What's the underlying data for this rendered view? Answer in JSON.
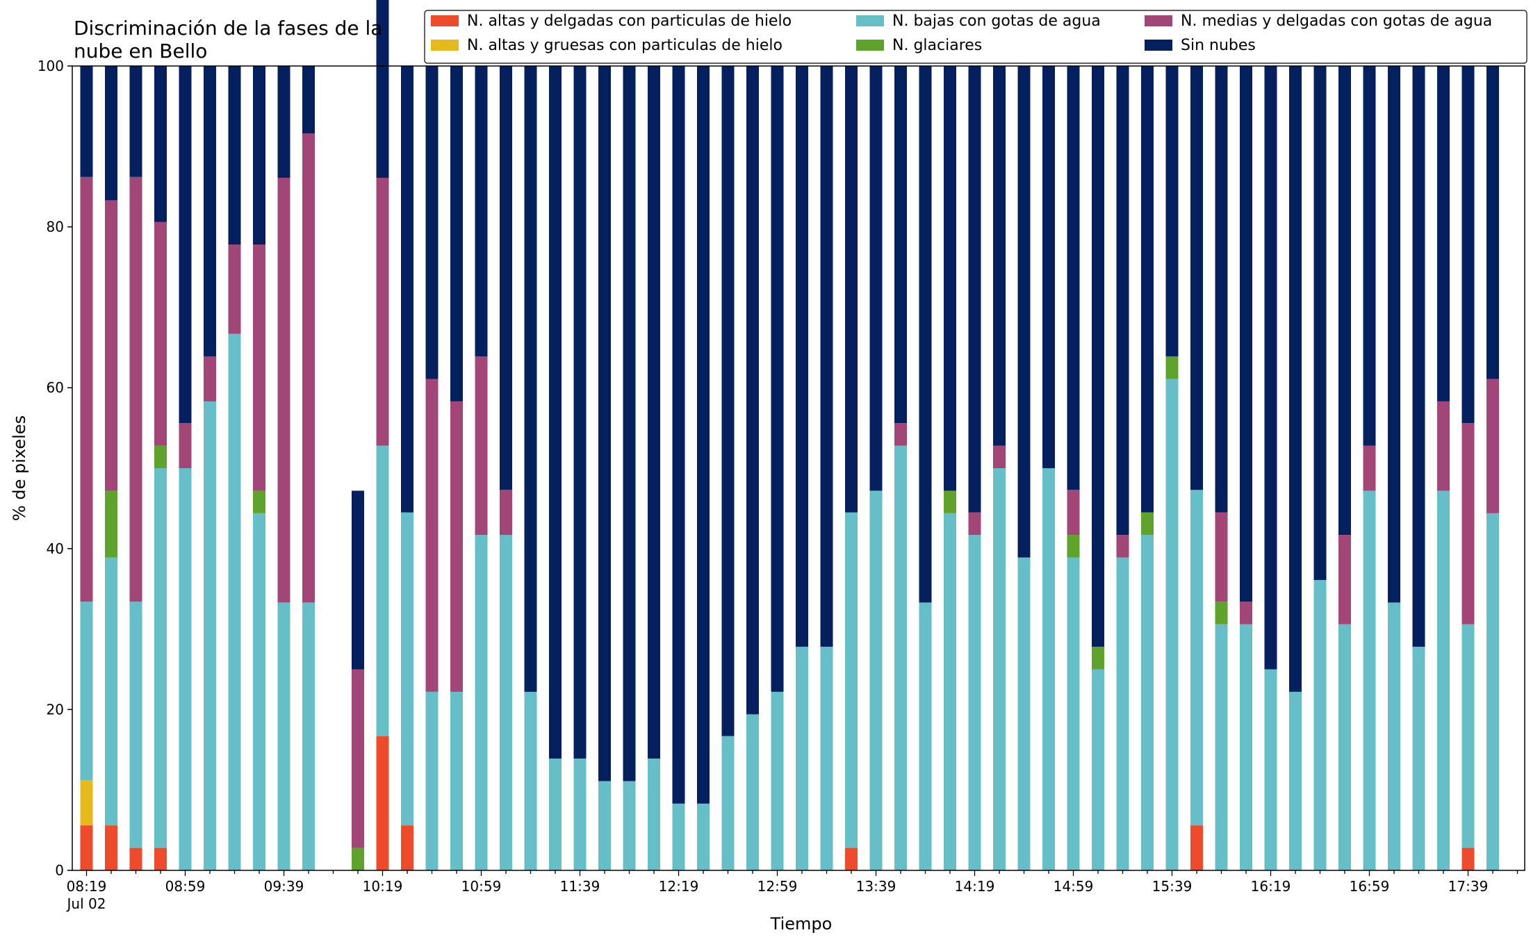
{
  "chart_data": {
    "type": "bar",
    "stacked": true,
    "title": "Discriminación de la fases de la nube en Bello",
    "title_lines": [
      "Discriminación de la fases de la",
      "nube en Bello"
    ],
    "xlabel": "Tiempo",
    "ylabel": "% de pixeles",
    "ylim": [
      0,
      100
    ],
    "yticks": [
      0,
      20,
      40,
      60,
      80,
      100
    ],
    "date_label": "Jul 02",
    "legend_position": "top-right",
    "xtick_labels": [
      "08:19",
      "08:59",
      "09:39",
      "10:19",
      "10:59",
      "11:39",
      "12:19",
      "12:59",
      "13:39",
      "14:19",
      "14:59",
      "15:39",
      "16:19",
      "16:59",
      "17:39"
    ],
    "series": [
      {
        "name": "N. altas y delgadas con particulas de hielo",
        "color": "#ee4a2c",
        "values": [
          5.6,
          5.6,
          2.8,
          2.8,
          0,
          0,
          0,
          0,
          0,
          0,
          null,
          0,
          16.7,
          5.6,
          0,
          0,
          0,
          0,
          0,
          0,
          0,
          0,
          0,
          0,
          0,
          0,
          0,
          0,
          0,
          0,
          0,
          2.8,
          0,
          0,
          0,
          0,
          0,
          0,
          0,
          0,
          0,
          0,
          0,
          0,
          0,
          5.6,
          0,
          0,
          0,
          0,
          0,
          0,
          0,
          0,
          0,
          0,
          2.8,
          0
        ]
      },
      {
        "name": "N. altas y gruesas con particulas de hielo",
        "color": "#e6b91c",
        "values": [
          5.6,
          0,
          0,
          0,
          0,
          0,
          0,
          0,
          0,
          0,
          null,
          0,
          0,
          0,
          0,
          0,
          0,
          0,
          0,
          0,
          0,
          0,
          0,
          0,
          0,
          0,
          0,
          0,
          0,
          0,
          0,
          0,
          0,
          0,
          0,
          0,
          0,
          0,
          0,
          0,
          0,
          0,
          0,
          0,
          0,
          0,
          0,
          0,
          0,
          0,
          0,
          0,
          0,
          0,
          0,
          0,
          0,
          0
        ]
      },
      {
        "name": "N. bajas con gotas de agua",
        "color": "#66bec8",
        "values": [
          22.2,
          33.3,
          30.6,
          47.2,
          50,
          58.3,
          66.7,
          44.4,
          33.3,
          33.3,
          null,
          0,
          36.1,
          38.9,
          22.2,
          22.2,
          41.7,
          41.7,
          22.2,
          13.9,
          13.9,
          11.1,
          11.1,
          13.9,
          8.3,
          8.3,
          16.7,
          19.4,
          22.2,
          27.8,
          27.8,
          41.7,
          47.2,
          52.8,
          33.3,
          44.4,
          41.7,
          50,
          38.9,
          50,
          38.9,
          25,
          38.9,
          41.7,
          61.1,
          41.7,
          30.6,
          30.6,
          25,
          22.2,
          36.1,
          30.6,
          47.2,
          33.3,
          27.8,
          47.2,
          27.8,
          44.4
        ]
      },
      {
        "name": "N. glaciares",
        "color": "#5fa22c",
        "values": [
          0,
          8.3,
          0,
          2.8,
          0,
          0,
          0,
          2.8,
          0,
          0,
          null,
          2.8,
          0,
          0,
          0,
          0,
          0,
          0,
          0,
          0,
          0,
          0,
          0,
          0,
          0,
          0,
          0,
          0,
          0,
          0,
          0,
          0,
          0,
          0,
          0,
          2.8,
          0,
          0,
          0,
          0,
          2.8,
          2.8,
          0,
          2.8,
          2.8,
          0,
          2.8,
          0,
          0,
          0,
          0,
          0,
          0,
          0,
          0,
          0,
          0,
          0
        ]
      },
      {
        "name": "N. medias y delgadas con gotas de agua",
        "color": "#a24678",
        "values": [
          52.8,
          36.1,
          52.8,
          27.8,
          5.6,
          5.6,
          11.1,
          30.6,
          52.8,
          58.3,
          null,
          22.2,
          33.3,
          0,
          38.9,
          36.1,
          22.2,
          5.6,
          0,
          0,
          0,
          0,
          0,
          0,
          0,
          0,
          0,
          0,
          0,
          0,
          0,
          0,
          0,
          2.8,
          0,
          0,
          2.8,
          2.8,
          0,
          0,
          5.6,
          0,
          2.8,
          0,
          0,
          0,
          11.1,
          2.8,
          0,
          0,
          0,
          11.1,
          5.6,
          0,
          0,
          11.1,
          25,
          16.7
        ]
      },
      {
        "name": "Sin nubes",
        "color": "#05205e",
        "values": [
          13.8,
          16.7,
          13.8,
          19.4,
          44.4,
          36.1,
          22.2,
          22.2,
          13.9,
          8.4,
          null,
          22.2,
          22.2,
          55.5,
          38.9,
          41.7,
          36.1,
          52.7,
          77.8,
          86.1,
          86.1,
          88.9,
          88.9,
          86.1,
          91.7,
          91.7,
          83.3,
          80.6,
          77.8,
          72.2,
          72.2,
          55.5,
          52.8,
          44.4,
          66.7,
          52.8,
          55.5,
          47.2,
          61.1,
          50,
          52.7,
          72.2,
          58.3,
          55.5,
          36.1,
          52.7,
          55.5,
          66.6,
          75,
          77.8,
          63.9,
          58.3,
          47.2,
          66.7,
          72.2,
          41.7,
          44.4,
          38.9
        ]
      }
    ]
  }
}
